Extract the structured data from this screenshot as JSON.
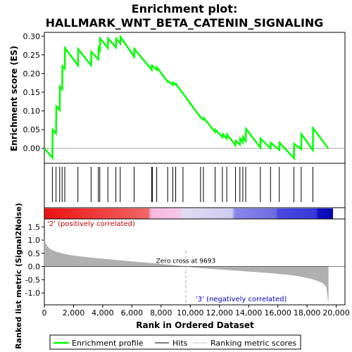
{
  "chart_data": {
    "type": "line",
    "title_line1": "Enrichment plot:",
    "title_line2": "HALLMARK_WNT_BETA_CATENIN_SIGNALING",
    "top_panel": {
      "ylabel": "Enrichment score (ES)",
      "ylim": [
        -0.04,
        0.31
      ],
      "yticks": [
        "0.00",
        "0.05",
        "0.10",
        "0.15",
        "0.20",
        "0.25",
        "0.30"
      ],
      "ytick_values": [
        0.0,
        0.05,
        0.1,
        0.15,
        0.2,
        0.25,
        0.3
      ],
      "xlim": [
        0,
        20600
      ],
      "series": [
        {
          "name": "Enrichment profile",
          "color": "#00ff00",
          "x": [
            0,
            550,
            570,
            800,
            820,
            1050,
            1070,
            1220,
            1240,
            1400,
            1420,
            2300,
            2320,
            3200,
            3220,
            3700,
            3720,
            3800,
            3820,
            4350,
            4370,
            4900,
            4920,
            5200,
            5220,
            6150,
            6170,
            7350,
            7370,
            7700,
            7720,
            8450,
            8470,
            8800,
            8820,
            9000,
            9020,
            10700,
            10720,
            10900,
            10920,
            11700,
            11720,
            12200,
            12220,
            12500,
            12520,
            13100,
            13120,
            13400,
            13420,
            13600,
            13620,
            13800,
            13820,
            14800,
            14820,
            15500,
            15520,
            16100,
            16120,
            17100,
            17120,
            17600,
            17620,
            18400,
            18420,
            19450
          ],
          "y": [
            0.0,
            -0.025,
            0.05,
            0.04,
            0.112,
            0.102,
            0.165,
            0.158,
            0.22,
            0.213,
            0.268,
            0.222,
            0.265,
            0.222,
            0.258,
            0.238,
            0.268,
            0.262,
            0.294,
            0.268,
            0.294,
            0.27,
            0.293,
            0.28,
            0.298,
            0.245,
            0.266,
            0.21,
            0.222,
            0.21,
            0.216,
            0.178,
            0.18,
            0.17,
            0.176,
            0.17,
            0.172,
            0.083,
            0.083,
            0.077,
            0.081,
            0.044,
            0.05,
            0.03,
            0.038,
            0.026,
            0.037,
            0.008,
            0.02,
            0.01,
            0.026,
            0.016,
            0.03,
            0.02,
            0.052,
            0.002,
            0.026,
            0.0,
            0.015,
            -0.004,
            0.015,
            -0.026,
            0.012,
            -0.002,
            0.038,
            -0.005,
            0.054,
            0.0
          ]
        }
      ]
    },
    "hits": [
      550,
      800,
      1050,
      1220,
      1400,
      2300,
      3200,
      3700,
      3800,
      4350,
      4900,
      5200,
      6150,
      7350,
      7400,
      7700,
      8450,
      8800,
      9000,
      9500,
      10700,
      10900,
      11700,
      12200,
      12500,
      13100,
      13400,
      13600,
      13800,
      14800,
      15500,
      16100,
      17100,
      17600,
      18400
    ],
    "bottom_panel": {
      "ylabel": "Ranked list metric (Signal2Noise)",
      "xlabel": "Rank in Ordered Dataset",
      "ylim": [
        -1.45,
        1.8
      ],
      "yticks": [
        "1.5",
        "1.0",
        "0.5",
        "0.0",
        "-0.5",
        "-1.0"
      ],
      "ytick_values": [
        1.5,
        1.0,
        0.5,
        0.0,
        -0.5,
        -1.0
      ],
      "xlim": [
        0,
        20600
      ],
      "xticks": [
        "0",
        "2,000",
        "4,000",
        "6,000",
        "8,000",
        "10,000",
        "12,000",
        "14,000",
        "16,000",
        "18,000",
        "20,000"
      ],
      "xtick_values": [
        0,
        2000,
        4000,
        6000,
        8000,
        10000,
        12000,
        14000,
        16000,
        18000,
        20000
      ],
      "zero_cross_label": "Zero cross at 9693",
      "zero_cross": 9693,
      "positive_label": "'2' (positively correlated)",
      "negative_label": "'3' (negatively correlated)",
      "metric_x": [
        0,
        50,
        150,
        300,
        500,
        800,
        1200,
        1800,
        2500,
        3500,
        4500,
        5500,
        6500,
        7500,
        8500,
        9693,
        10500,
        11500,
        12500,
        13500,
        14500,
        15500,
        16500,
        17200,
        17800,
        18300,
        18700,
        19000,
        19200,
        19350,
        19450
      ],
      "metric_y": [
        1.05,
        0.92,
        0.8,
        0.7,
        0.62,
        0.55,
        0.49,
        0.42,
        0.37,
        0.31,
        0.26,
        0.21,
        0.16,
        0.11,
        0.06,
        0.0,
        -0.04,
        -0.08,
        -0.12,
        -0.16,
        -0.2,
        -0.24,
        -0.29,
        -0.34,
        -0.4,
        -0.46,
        -0.53,
        -0.6,
        -0.68,
        -0.8,
        -1.3
      ]
    },
    "legend": {
      "position": "bottom",
      "items": [
        {
          "label": "Enrichment profile",
          "color": "#00ff00",
          "style": "thick-line"
        },
        {
          "label": "Hits",
          "color": "#000000",
          "style": "line"
        },
        {
          "label": "Ranking metric scores",
          "color": "#c0c0c0",
          "style": "line"
        }
      ]
    },
    "colors": {
      "positive": "#dd2222",
      "negative": "#2222cc",
      "positive_label": "#cc0000",
      "negative_label": "#0000cc",
      "metric_fill": "#b0b0b0"
    }
  }
}
